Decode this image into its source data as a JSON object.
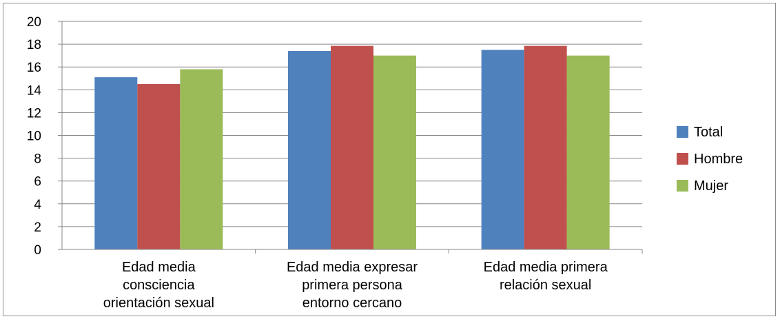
{
  "chart_data": {
    "type": "bar",
    "categories": [
      [
        "Edad media",
        "consciencia",
        "orientación sexual"
      ],
      [
        "Edad media expresar",
        "primera persona",
        "entorno cercano"
      ],
      [
        "Edad media primera",
        "relación sexual"
      ]
    ],
    "series": [
      {
        "name": "Total",
        "color": "#4f81bd",
        "values": [
          15.1,
          17.4,
          17.5
        ]
      },
      {
        "name": "Hombre",
        "color": "#c0504d",
        "values": [
          14.5,
          17.85,
          17.85
        ]
      },
      {
        "name": "Mujer",
        "color": "#9bbb59",
        "values": [
          15.8,
          17.0,
          17.0
        ]
      }
    ],
    "ylim": [
      0,
      20
    ],
    "yticks": [
      0,
      2,
      4,
      6,
      8,
      10,
      12,
      14,
      16,
      18,
      20
    ],
    "grid": true,
    "legend_position": "right"
  }
}
